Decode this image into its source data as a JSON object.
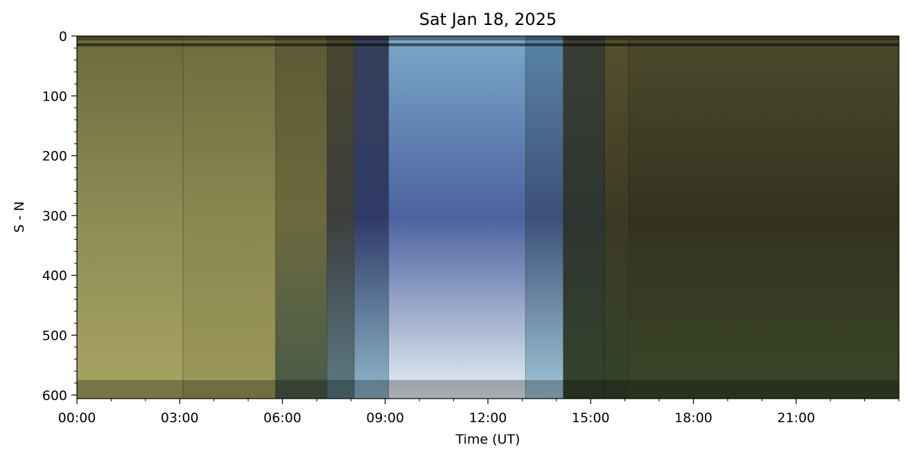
{
  "chart_data": {
    "type": "heatmap",
    "title": "Sat Jan 18, 2025",
    "xlabel": "Time (UT)",
    "ylabel": "S - N",
    "x_unit": "hours UT",
    "xlim": [
      0,
      24
    ],
    "ylim": [
      606,
      0
    ],
    "x_tick_labels": [
      "00:00",
      "03:00",
      "06:00",
      "09:00",
      "12:00",
      "15:00",
      "18:00",
      "21:00"
    ],
    "x_tick_values": [
      0,
      3,
      6,
      9,
      12,
      15,
      18,
      21
    ],
    "y_ticks": [
      0,
      100,
      200,
      300,
      400,
      500,
      600
    ],
    "segments": [
      {
        "start": 0.0,
        "end": 3.1,
        "top": "#6a6a3e",
        "mid": "#8e8c55",
        "bottom": "#a8a462"
      },
      {
        "start": 3.1,
        "end": 5.8,
        "top": "#6e6c40",
        "mid": "#8a874f",
        "bottom": "#9c985a"
      },
      {
        "start": 5.8,
        "end": 7.3,
        "top": "#5c5a34",
        "mid": "#6b6a3e",
        "bottom": "#4a5a48"
      },
      {
        "start": 7.3,
        "end": 8.1,
        "top": "#48472e",
        "mid": "#3d3e3c",
        "bottom": "#5c7a86"
      },
      {
        "start": 8.1,
        "end": 9.1,
        "top": "#36405a",
        "mid": "#2f3a66",
        "bottom": "#8fb8cc"
      },
      {
        "start": 9.1,
        "end": 13.1,
        "top": "#7aa8c8",
        "mid": "#4c62a0",
        "bottom": "#e8f0f4"
      },
      {
        "start": 13.1,
        "end": 14.2,
        "top": "#5a84a4",
        "mid": "#3c5078",
        "bottom": "#a0c8d8"
      },
      {
        "start": 14.2,
        "end": 15.4,
        "top": "#3a3e34",
        "mid": "#2e3430",
        "bottom": "#34442c"
      },
      {
        "start": 15.4,
        "end": 16.1,
        "top": "#55502c",
        "mid": "#3c3a24",
        "bottom": "#33432a"
      },
      {
        "start": 16.1,
        "end": 24.0,
        "top": "#4c4a2c",
        "mid": "#33331f",
        "bottom": "#3a4628"
      }
    ]
  }
}
